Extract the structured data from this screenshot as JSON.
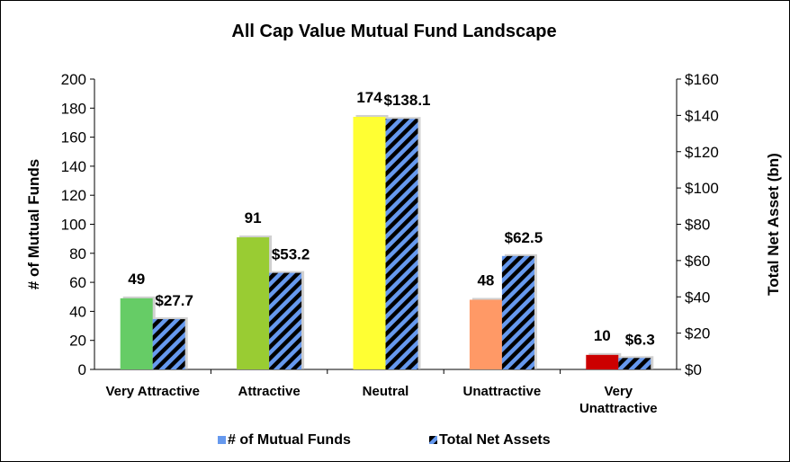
{
  "chart_data": {
    "type": "bar",
    "title": "All Cap Value Mutual Fund Landscape",
    "categories": [
      [
        "Very Attractive"
      ],
      [
        "Attractive"
      ],
      [
        "Neutral"
      ],
      [
        "Unattractive"
      ],
      [
        "Very",
        "Unattractive"
      ]
    ],
    "y_left": {
      "label": "# of Mutual Funds",
      "ylim": [
        0,
        200
      ],
      "ticks": [
        "0",
        "20",
        "40",
        "60",
        "80",
        "100",
        "120",
        "140",
        "160",
        "180",
        "200"
      ]
    },
    "y_right": {
      "label": "Total Net Asset (bn)",
      "ylim": [
        0,
        160
      ],
      "ticks": [
        "$0",
        "$20",
        "$40",
        "$60",
        "$80",
        "$100",
        "$120",
        "$140",
        "$160"
      ]
    },
    "series": [
      {
        "name": "# of Mutual Funds",
        "axis": "left",
        "values": [
          49,
          91,
          174,
          48,
          10
        ],
        "labels": [
          "49",
          "91",
          "174",
          "48",
          "10"
        ],
        "colors": [
          "#66cc66",
          "#99cc33",
          "#ffff33",
          "#ff9966",
          "#cc0000"
        ],
        "legend_color": "#6699ee"
      },
      {
        "name": "Total Net Assets",
        "axis": "right",
        "values": [
          27.7,
          53.2,
          138.1,
          62.5,
          6.3
        ],
        "labels": [
          "$27.7",
          "$53.2",
          "$138.1",
          "$62.5",
          "$6.3"
        ],
        "pattern_colors": [
          "#000000",
          "#6699ee"
        ]
      }
    ],
    "legend": "bottom",
    "grid": false
  }
}
